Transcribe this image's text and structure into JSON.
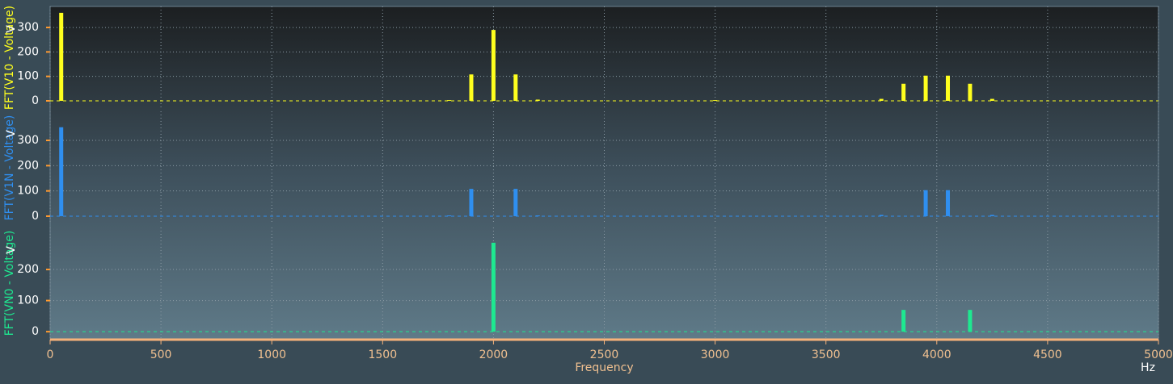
{
  "chart_data": [
    {
      "type": "bar",
      "ylabel": "FFT(V10 - Voltage)",
      "yunit": "V",
      "color": "#ffff1e",
      "x": [
        50,
        1800,
        1900,
        2000,
        2100,
        2200,
        3000,
        3750,
        3850,
        3950,
        4050,
        4150,
        4250
      ],
      "values": [
        360,
        3,
        108,
        290,
        108,
        5,
        3,
        8,
        70,
        103,
        103,
        70,
        8
      ],
      "xlim": [
        0,
        5000
      ],
      "ylim": [
        -33,
        386
      ],
      "yticks": [
        0,
        100,
        200,
        300
      ],
      "grid": true
    },
    {
      "type": "bar",
      "ylabel": "FFT(V1N - Voltage)",
      "yunit": "V",
      "color": "#2f8ff0",
      "x": [
        50,
        1800,
        1900,
        2100,
        2200,
        3750,
        3950,
        4050,
        4250
      ],
      "values": [
        352,
        3,
        108,
        108,
        3,
        5,
        103,
        103,
        5
      ],
      "xlim": [
        0,
        5000
      ],
      "ylim": [
        -32,
        415
      ],
      "yticks": [
        0,
        100,
        200,
        300
      ],
      "grid": true
    },
    {
      "type": "bar",
      "ylabel": "FFT(VN0 - Voltage)",
      "yunit": "V",
      "color": "#1ee890",
      "x": [
        2000,
        3850,
        4150
      ],
      "values": [
        286,
        70,
        70
      ],
      "xlim": [
        0,
        5000
      ],
      "ylim": [
        -23,
        335
      ],
      "yticks": [
        0,
        100,
        200
      ],
      "grid": true,
      "xticks": [
        0,
        500,
        1000,
        1500,
        2000,
        2500,
        3000,
        3500,
        4000,
        4500,
        5000
      ],
      "xlabel": "Frequency",
      "xunit": "Hz"
    }
  ]
}
